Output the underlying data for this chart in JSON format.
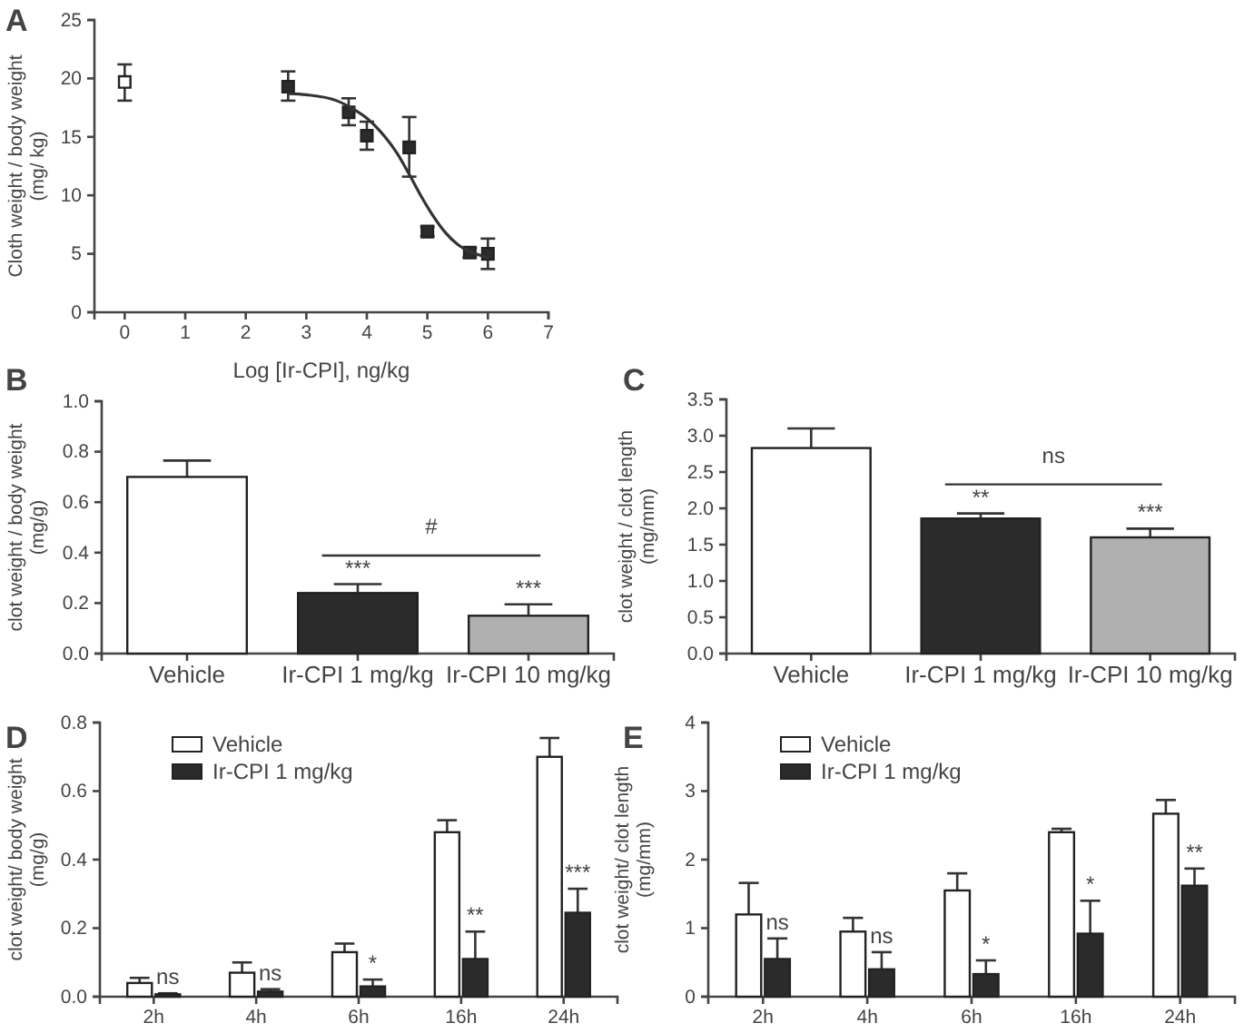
{
  "chart_data": [
    {
      "type": "scatter",
      "title": "A",
      "xlabel": "Log [Ir-CPI], ng/kg",
      "ylabel": "Cloth weight / body weight\n(mg/ kg)",
      "xlim": [
        -0.5,
        7
      ],
      "ylim": [
        0,
        25
      ],
      "xticks": [
        0,
        1,
        2,
        3,
        4,
        5,
        6,
        7
      ],
      "yticks": [
        0,
        5,
        10,
        15,
        20,
        25
      ],
      "marker": "square",
      "grid": false,
      "series": [
        {
          "type": "scatter",
          "color": "#ffffff",
          "x": [
            0
          ],
          "values": [
            19.7
          ],
          "errors": [
            [
              18.1,
              21.2
            ]
          ]
        },
        {
          "type": "scatter",
          "color": "#2b2b2b",
          "x": [
            2.7,
            3.7,
            4.0,
            4.7,
            5.0,
            5.7,
            6.0
          ],
          "values": [
            19.3,
            17.1,
            15.1,
            14.1,
            6.9,
            5.1,
            5.0
          ],
          "errors": [
            [
              18.1,
              20.6
            ],
            [
              16.0,
              18.3
            ],
            [
              13.9,
              16.3
            ],
            [
              11.6,
              16.7
            ],
            [
              6.5,
              7.3
            ],
            [
              4.7,
              5.5
            ],
            [
              3.7,
              6.3
            ]
          ]
        },
        {
          "type": "line",
          "color": "#333333",
          "marker": "none",
          "x": [
            2.7,
            3.0,
            3.5,
            3.8,
            4.0,
            4.3,
            4.5,
            4.7,
            4.9,
            5.1,
            5.3,
            5.5,
            5.7,
            6.0
          ],
          "values": [
            18.7,
            18.6,
            18.1,
            17.3,
            16.6,
            15.0,
            13.6,
            11.8,
            9.9,
            8.2,
            6.8,
            5.8,
            5.2,
            4.7
          ]
        }
      ]
    },
    {
      "type": "bar",
      "title": "B",
      "ylabel": "clot weight / body weight\n(mg/g)",
      "categories": [
        "Vehicle",
        "Ir-CPI 1 mg/kg",
        "Ir-CPI 10 mg/kg"
      ],
      "values": [
        0.7,
        0.24,
        0.15
      ],
      "errors": [
        [
          0.7,
          0.765
        ],
        [
          0.24,
          0.275
        ],
        [
          0.15,
          0.195
        ]
      ],
      "colors": [
        "#ffffff",
        "#2b2b2b",
        "#b0b0b0"
      ],
      "ylim": [
        0,
        1
      ],
      "yticks": [
        {
          "value": 0,
          "label": "0.0"
        },
        {
          "value": 0.2,
          "label": "0.2"
        },
        {
          "value": 0.4,
          "label": "0.4"
        },
        {
          "value": 0.6,
          "label": "0.6"
        },
        {
          "value": 0.8,
          "label": "0.8"
        },
        {
          "value": 1,
          "label": "1.0"
        }
      ],
      "grid": false,
      "annotations": [
        {
          "text": "***",
          "x": "Ir-CPI 1 mg/kg",
          "y": 0.275
        },
        {
          "text": "***",
          "x": "Ir-CPI 10 mg/kg",
          "y": 0.195
        },
        "#"
      ]
    },
    {
      "type": "bar",
      "title": "C",
      "ylabel": "clot weight / clot length\n(mg/mm)",
      "categories": [
        "Vehicle",
        "Ir-CPI 1 mg/kg",
        "Ir-CPI 10 mg/kg"
      ],
      "values": [
        2.83,
        1.86,
        1.6
      ],
      "errors": [
        [
          2.83,
          3.1
        ],
        [
          1.86,
          1.93
        ],
        [
          1.6,
          1.72
        ]
      ],
      "colors": [
        "#ffffff",
        "#2b2b2b",
        "#b0b0b0"
      ],
      "ylim": [
        0,
        3.5
      ],
      "yticks": [
        {
          "value": 0,
          "label": "0.0"
        },
        {
          "value": 0.5,
          "label": "0.5"
        },
        {
          "value": 1,
          "label": "1.0"
        },
        {
          "value": 1.5,
          "label": "1.5"
        },
        {
          "value": 2,
          "label": "2.0"
        },
        {
          "value": 2.5,
          "label": "2.5"
        },
        {
          "value": 3,
          "label": "3.0"
        },
        {
          "value": 3.5,
          "label": "3.5"
        }
      ],
      "grid": false,
      "annotations": [
        {
          "text": "**",
          "x": "Ir-CPI 1 mg/kg",
          "y": 1.93
        },
        {
          "text": "***",
          "x": "Ir-CPI 10 mg/kg",
          "y": 1.72
        },
        "ns"
      ]
    },
    {
      "type": "bar",
      "title": "D",
      "ylabel": "clot weight/ body weight\n(mg/g)",
      "categories": [
        "2h",
        "4h",
        "6h",
        "16h",
        "24h"
      ],
      "legend": "top left",
      "grid": false,
      "ylim": [
        0,
        0.8
      ],
      "yticks": [
        {
          "value": 0,
          "label": "0.0"
        },
        {
          "value": 0.2,
          "label": "0.2"
        },
        {
          "value": 0.4,
          "label": "0.4"
        },
        {
          "value": 0.6,
          "label": "0.6"
        },
        {
          "value": 0.8,
          "label": "0.8"
        }
      ],
      "series": [
        {
          "name": "Vehicle",
          "color": "#ffffff",
          "values": [
            0.04,
            0.07,
            0.13,
            0.48,
            0.7
          ],
          "errors": [
            [
              0.04,
              0.055
            ],
            [
              0.07,
              0.1
            ],
            [
              0.13,
              0.155
            ],
            [
              0.48,
              0.515
            ],
            [
              0.7,
              0.755
            ]
          ]
        },
        {
          "name": "Ir-CPI 1 mg/kg",
          "color": "#2b2b2b",
          "values": [
            0.007,
            0.015,
            0.03,
            0.11,
            0.245
          ],
          "errors": [
            [
              0.007,
              0.01
            ],
            [
              0.015,
              0.022
            ],
            [
              0.03,
              0.05
            ],
            [
              0.11,
              0.19
            ],
            [
              0.245,
              0.315
            ]
          ]
        }
      ],
      "annotations": [
        {
          "text": "ns",
          "x": "2h",
          "y": 0.01
        },
        {
          "text": "ns",
          "x": "4h",
          "y": 0.022
        },
        {
          "text": "*",
          "x": "6h",
          "y": 0.05
        },
        {
          "text": "**",
          "x": "16h",
          "y": 0.19
        },
        {
          "text": "***",
          "x": "24h",
          "y": 0.315
        }
      ]
    },
    {
      "type": "bar",
      "title": "E",
      "ylabel": "clot weight/ clot length\n(mg/mm)",
      "categories": [
        "2h",
        "4h",
        "6h",
        "16h",
        "24h"
      ],
      "legend": "top left",
      "grid": false,
      "ylim": [
        0,
        4
      ],
      "yticks": [
        0,
        1,
        2,
        3,
        4
      ],
      "series": [
        {
          "name": "Vehicle",
          "color": "#ffffff",
          "values": [
            1.2,
            0.95,
            1.55,
            2.4,
            2.67
          ],
          "errors": [
            [
              1.2,
              1.66
            ],
            [
              0.95,
              1.15
            ],
            [
              1.55,
              1.8
            ],
            [
              2.4,
              2.45
            ],
            [
              2.67,
              2.87
            ]
          ]
        },
        {
          "name": "Ir-CPI 1 mg/kg",
          "color": "#2b2b2b",
          "values": [
            0.55,
            0.4,
            0.33,
            0.92,
            1.62
          ],
          "errors": [
            [
              0.55,
              0.85
            ],
            [
              0.4,
              0.65
            ],
            [
              0.33,
              0.53
            ],
            [
              0.92,
              1.4
            ],
            [
              1.62,
              1.87
            ]
          ]
        }
      ],
      "annotations": [
        {
          "text": "ns",
          "x": "2h",
          "y": 0.85
        },
        {
          "text": "ns",
          "x": "4h",
          "y": 0.65
        },
        {
          "text": "*",
          "x": "6h",
          "y": 0.53
        },
        {
          "text": "*",
          "x": "16h",
          "y": 1.4
        },
        {
          "text": "**",
          "x": "24h",
          "y": 1.87
        }
      ]
    }
  ]
}
